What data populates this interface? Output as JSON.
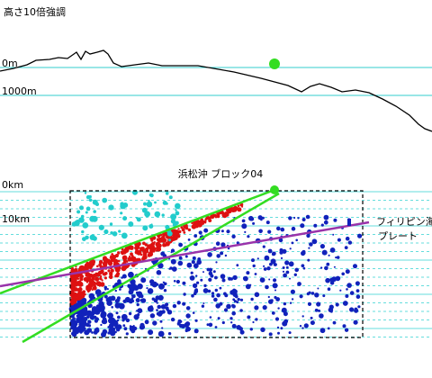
{
  "header": {
    "title": "高さ10倍強調"
  },
  "profile": {
    "labels": [
      "0m",
      "1000m"
    ]
  },
  "section": {
    "title": "浜松沖 ブロック04",
    "depth_labels": [
      "0km",
      "10km"
    ],
    "plate_label": [
      "フィリピン海",
      "プレート"
    ]
  }
}
